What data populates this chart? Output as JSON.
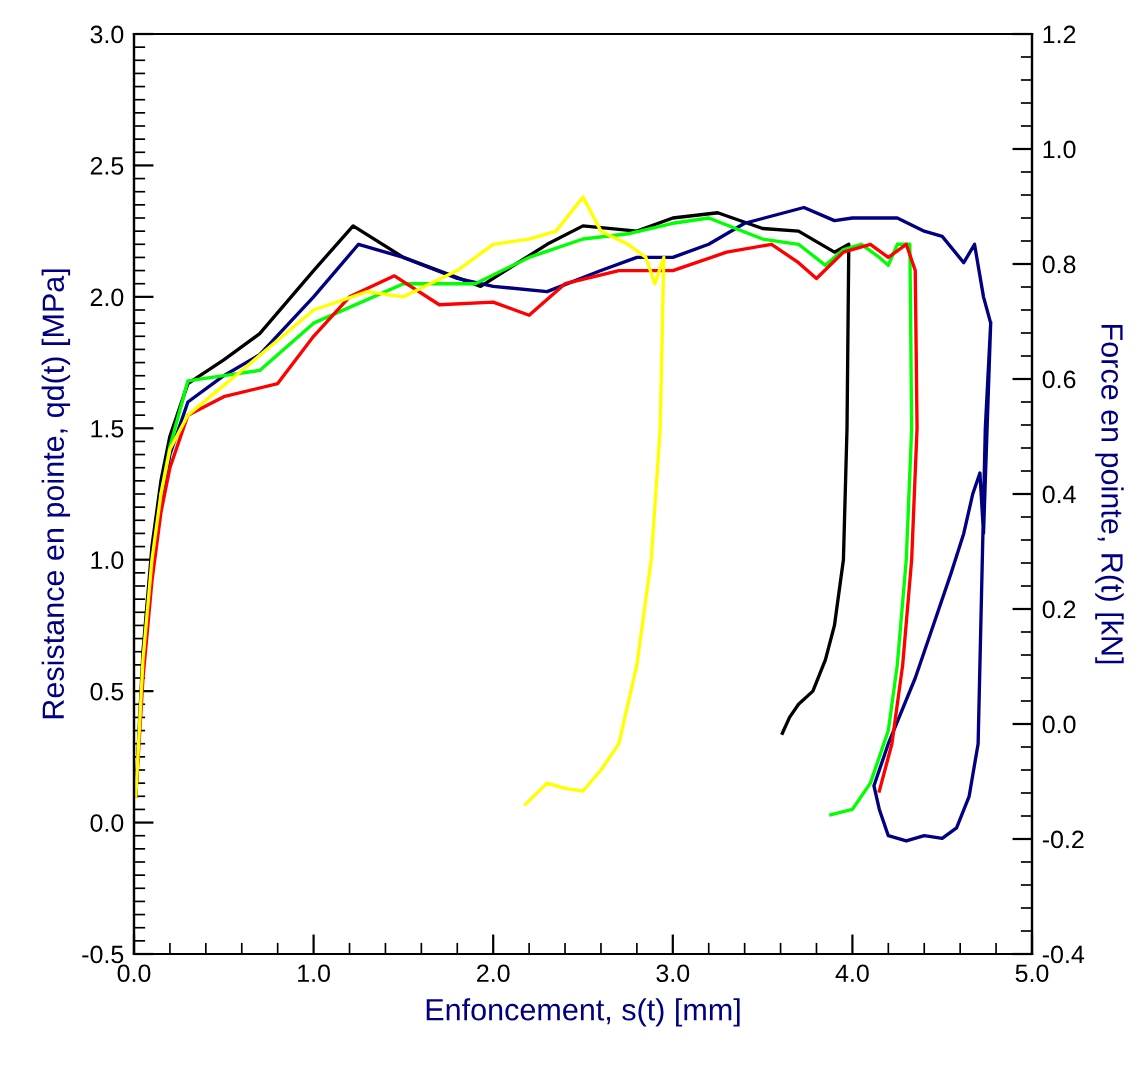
{
  "chart_data": {
    "type": "line",
    "xlabel": "Enfoncement, s(t) [mm]",
    "ylabel": "Resistance en pointe, qd(t) [MPa]",
    "y2label": "Force en pointe, R(t) [kN]",
    "xlim": [
      0.0,
      5.0
    ],
    "xticks": [
      {
        "value": 0,
        "label": "0.0"
      },
      {
        "value": 1,
        "label": "1.0"
      },
      {
        "value": 2,
        "label": "2.0"
      },
      {
        "value": 3,
        "label": "3.0"
      },
      {
        "value": 4,
        "label": "4.0"
      },
      {
        "value": 5,
        "label": "5.0"
      }
    ],
    "ylim": [
      -0.5,
      3.0
    ],
    "yticks": [
      -0.5,
      {
        "value": 0,
        "label": "0.0"
      },
      0.5,
      {
        "value": 1,
        "label": "1.0"
      },
      1.5,
      {
        "value": 2,
        "label": "2.0"
      },
      2.5,
      {
        "value": 3,
        "label": "3.0"
      }
    ],
    "y2lim": [
      -0.4,
      1.2
    ],
    "y2ticks": [
      -0.4,
      -0.2,
      {
        "value": 0,
        "label": "0.0"
      },
      0.2,
      0.4,
      0.6,
      0.8,
      {
        "value": 1,
        "label": "1.0"
      },
      1.2
    ],
    "grid": false,
    "legend": false,
    "marker": "none",
    "line_style": "solid",
    "series": [
      {
        "color": "#000000",
        "x": [
          0.01,
          0.05,
          0.1,
          0.15,
          0.2,
          0.3,
          0.5,
          0.7,
          1.0,
          1.22,
          1.5,
          1.93,
          2.3,
          2.5,
          2.8,
          3.0,
          3.25,
          3.5,
          3.7,
          3.9,
          3.98,
          3.97,
          3.95,
          3.9,
          3.85,
          3.78,
          3.7,
          3.65,
          3.61
        ],
        "values": [
          0.1,
          0.65,
          1.05,
          1.3,
          1.47,
          1.67,
          1.76,
          1.86,
          2.1,
          2.27,
          2.15,
          2.04,
          2.2,
          2.27,
          2.25,
          2.3,
          2.32,
          2.26,
          2.25,
          2.17,
          2.2,
          1.5,
          1.0,
          0.75,
          0.62,
          0.5,
          0.45,
          0.4,
          0.34
        ]
      },
      {
        "color": "#000080",
        "x": [
          0.15,
          0.2,
          0.3,
          0.5,
          0.7,
          1.0,
          1.25,
          1.5,
          1.8,
          2.0,
          2.3,
          2.6,
          2.8,
          3.0,
          3.2,
          3.4,
          3.73,
          3.9,
          4.0,
          4.25,
          4.4,
          4.5,
          4.62,
          4.68,
          4.73,
          4.77,
          4.74,
          4.72,
          4.7,
          4.65,
          4.58,
          4.5,
          4.4,
          4.3,
          4.2,
          4.15,
          4.12,
          4.2,
          4.35,
          4.45,
          4.55,
          4.62,
          4.67,
          4.71,
          4.73,
          4.75,
          4.77
        ],
        "values": [
          1.2,
          1.4,
          1.6,
          1.7,
          1.78,
          2.0,
          2.2,
          2.15,
          2.07,
          2.04,
          2.02,
          2.1,
          2.15,
          2.15,
          2.2,
          2.28,
          2.34,
          2.29,
          2.3,
          2.3,
          2.25,
          2.23,
          2.13,
          2.2,
          2.0,
          1.9,
          1.5,
          0.9,
          0.3,
          0.1,
          -0.02,
          -0.06,
          -0.05,
          -0.07,
          -0.05,
          0.05,
          0.14,
          0.3,
          0.55,
          0.75,
          0.95,
          1.1,
          1.25,
          1.33,
          1.1,
          1.5,
          1.9
        ]
      },
      {
        "color": "#00ff00",
        "x": [
          0.15,
          0.2,
          0.3,
          0.5,
          0.7,
          1.0,
          1.5,
          1.9,
          2.2,
          2.5,
          2.75,
          3.0,
          3.2,
          3.5,
          3.7,
          3.85,
          3.95,
          4.05,
          4.15,
          4.2,
          4.25,
          4.32,
          4.33,
          4.3,
          4.25,
          4.2,
          4.1,
          4.0,
          3.88
        ],
        "values": [
          1.25,
          1.43,
          1.68,
          1.7,
          1.72,
          1.9,
          2.05,
          2.05,
          2.15,
          2.22,
          2.24,
          2.28,
          2.3,
          2.22,
          2.2,
          2.12,
          2.18,
          2.2,
          2.15,
          2.12,
          2.2,
          2.2,
          1.5,
          1.0,
          0.6,
          0.35,
          0.15,
          0.05,
          0.03
        ]
      },
      {
        "color": "#ff0000",
        "x": [
          0.01,
          0.05,
          0.1,
          0.15,
          0.2,
          0.3,
          0.5,
          0.8,
          1.0,
          1.2,
          1.45,
          1.7,
          2.0,
          2.2,
          2.4,
          2.7,
          3.0,
          3.3,
          3.55,
          3.7,
          3.8,
          3.95,
          4.1,
          4.2,
          4.3,
          4.35,
          4.36,
          4.33,
          4.28,
          4.22,
          4.15
        ],
        "values": [
          0.1,
          0.55,
          0.92,
          1.18,
          1.35,
          1.55,
          1.62,
          1.67,
          1.85,
          2.0,
          2.08,
          1.97,
          1.98,
          1.93,
          2.05,
          2.1,
          2.1,
          2.17,
          2.2,
          2.13,
          2.07,
          2.17,
          2.2,
          2.15,
          2.2,
          2.1,
          1.5,
          1.0,
          0.6,
          0.3,
          0.12
        ]
      },
      {
        "color": "#ffff00",
        "x": [
          0.01,
          0.05,
          0.1,
          0.15,
          0.2,
          0.3,
          0.6,
          1.0,
          1.3,
          1.5,
          1.8,
          2.0,
          2.2,
          2.35,
          2.5,
          2.6,
          2.75,
          2.85,
          2.9,
          2.95,
          2.93,
          2.88,
          2.8,
          2.7,
          2.6,
          2.5,
          2.4,
          2.3,
          2.18
        ],
        "values": [
          0.1,
          0.62,
          1.0,
          1.25,
          1.42,
          1.55,
          1.72,
          1.95,
          2.02,
          2.0,
          2.1,
          2.2,
          2.22,
          2.25,
          2.38,
          2.25,
          2.2,
          2.15,
          2.05,
          2.15,
          1.5,
          1.0,
          0.6,
          0.3,
          0.2,
          0.12,
          0.13,
          0.15,
          0.07
        ]
      }
    ]
  }
}
